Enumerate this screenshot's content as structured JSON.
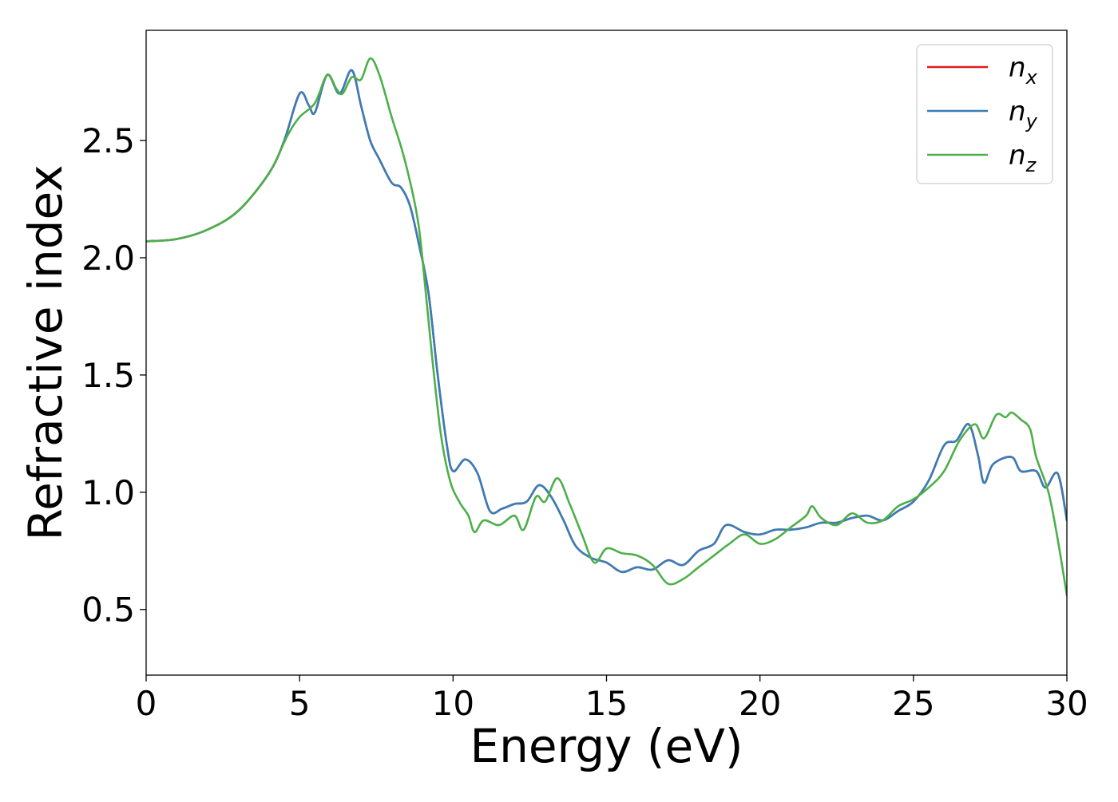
{
  "chart_data": {
    "type": "line",
    "xlabel": "Energy (eV)",
    "ylabel": "Refractive index",
    "xlim": [
      0,
      30
    ],
    "ylim": [
      0.22,
      2.97
    ],
    "xticks": [
      0,
      5,
      10,
      15,
      20,
      25,
      30
    ],
    "xtick_labels": [
      "0",
      "5",
      "10",
      "15",
      "20",
      "25",
      "30"
    ],
    "yticks": [
      0.5,
      1.0,
      1.5,
      2.0,
      2.5
    ],
    "ytick_labels": [
      "0.5",
      "1.0",
      "1.5",
      "2.0",
      "2.5"
    ],
    "grid": false,
    "legend_position": "top-right",
    "series": [
      {
        "name": "n_x",
        "legend_base": "n",
        "legend_sub": "x",
        "color": "#e41a1c",
        "points": [
          [
            0,
            2.07
          ],
          [
            1,
            2.08
          ],
          [
            2,
            2.12
          ],
          [
            3,
            2.2
          ],
          [
            4,
            2.36
          ],
          [
            4.5,
            2.5
          ],
          [
            5,
            2.7
          ],
          [
            5.3,
            2.65
          ],
          [
            5.5,
            2.62
          ],
          [
            5.9,
            2.78
          ],
          [
            6.3,
            2.7
          ],
          [
            6.7,
            2.8
          ],
          [
            7,
            2.65
          ],
          [
            7.3,
            2.5
          ],
          [
            7.6,
            2.42
          ],
          [
            8,
            2.32
          ],
          [
            8.3,
            2.3
          ],
          [
            8.6,
            2.22
          ],
          [
            8.9,
            2.05
          ],
          [
            9.2,
            1.85
          ],
          [
            9.5,
            1.5
          ],
          [
            9.8,
            1.2
          ],
          [
            10,
            1.09
          ],
          [
            10.4,
            1.14
          ],
          [
            10.8,
            1.08
          ],
          [
            11.2,
            0.92
          ],
          [
            11.6,
            0.93
          ],
          [
            12,
            0.95
          ],
          [
            12.4,
            0.96
          ],
          [
            12.8,
            1.03
          ],
          [
            13.2,
            0.98
          ],
          [
            13.6,
            0.88
          ],
          [
            14,
            0.77
          ],
          [
            14.5,
            0.72
          ],
          [
            15,
            0.7
          ],
          [
            15.5,
            0.66
          ],
          [
            16,
            0.68
          ],
          [
            16.5,
            0.67
          ],
          [
            17,
            0.71
          ],
          [
            17.5,
            0.69
          ],
          [
            18,
            0.75
          ],
          [
            18.5,
            0.78
          ],
          [
            18.9,
            0.86
          ],
          [
            19.5,
            0.83
          ],
          [
            20,
            0.82
          ],
          [
            20.5,
            0.84
          ],
          [
            21,
            0.84
          ],
          [
            21.5,
            0.85
          ],
          [
            22,
            0.87
          ],
          [
            22.5,
            0.87
          ],
          [
            23,
            0.89
          ],
          [
            23.5,
            0.9
          ],
          [
            24,
            0.88
          ],
          [
            24.5,
            0.92
          ],
          [
            25,
            0.96
          ],
          [
            25.5,
            1.05
          ],
          [
            26,
            1.2
          ],
          [
            26.4,
            1.22
          ],
          [
            26.8,
            1.29
          ],
          [
            27.1,
            1.16
          ],
          [
            27.3,
            1.04
          ],
          [
            27.6,
            1.12
          ],
          [
            28.2,
            1.15
          ],
          [
            28.5,
            1.09
          ],
          [
            29,
            1.09
          ],
          [
            29.3,
            1.02
          ],
          [
            29.7,
            1.08
          ],
          [
            30,
            0.88
          ]
        ]
      },
      {
        "name": "n_y",
        "legend_base": "n",
        "legend_sub": "y",
        "color": "#377eb8",
        "points": [
          [
            0,
            2.07
          ],
          [
            1,
            2.08
          ],
          [
            2,
            2.12
          ],
          [
            3,
            2.2
          ],
          [
            4,
            2.36
          ],
          [
            4.5,
            2.5
          ],
          [
            5,
            2.7
          ],
          [
            5.3,
            2.65
          ],
          [
            5.5,
            2.62
          ],
          [
            5.9,
            2.78
          ],
          [
            6.3,
            2.7
          ],
          [
            6.7,
            2.8
          ],
          [
            7,
            2.65
          ],
          [
            7.3,
            2.5
          ],
          [
            7.6,
            2.42
          ],
          [
            8,
            2.32
          ],
          [
            8.3,
            2.3
          ],
          [
            8.6,
            2.22
          ],
          [
            8.9,
            2.05
          ],
          [
            9.2,
            1.85
          ],
          [
            9.5,
            1.5
          ],
          [
            9.8,
            1.2
          ],
          [
            10,
            1.09
          ],
          [
            10.4,
            1.14
          ],
          [
            10.8,
            1.08
          ],
          [
            11.2,
            0.92
          ],
          [
            11.6,
            0.93
          ],
          [
            12,
            0.95
          ],
          [
            12.4,
            0.96
          ],
          [
            12.8,
            1.03
          ],
          [
            13.2,
            0.98
          ],
          [
            13.6,
            0.88
          ],
          [
            14,
            0.77
          ],
          [
            14.5,
            0.72
          ],
          [
            15,
            0.7
          ],
          [
            15.5,
            0.66
          ],
          [
            16,
            0.68
          ],
          [
            16.5,
            0.67
          ],
          [
            17,
            0.71
          ],
          [
            17.5,
            0.69
          ],
          [
            18,
            0.75
          ],
          [
            18.5,
            0.78
          ],
          [
            18.9,
            0.86
          ],
          [
            19.5,
            0.83
          ],
          [
            20,
            0.82
          ],
          [
            20.5,
            0.84
          ],
          [
            21,
            0.84
          ],
          [
            21.5,
            0.85
          ],
          [
            22,
            0.87
          ],
          [
            22.5,
            0.87
          ],
          [
            23,
            0.89
          ],
          [
            23.5,
            0.9
          ],
          [
            24,
            0.88
          ],
          [
            24.5,
            0.92
          ],
          [
            25,
            0.96
          ],
          [
            25.5,
            1.05
          ],
          [
            26,
            1.2
          ],
          [
            26.4,
            1.22
          ],
          [
            26.8,
            1.29
          ],
          [
            27.1,
            1.16
          ],
          [
            27.3,
            1.04
          ],
          [
            27.6,
            1.12
          ],
          [
            28.2,
            1.15
          ],
          [
            28.5,
            1.09
          ],
          [
            29,
            1.09
          ],
          [
            29.3,
            1.02
          ],
          [
            29.7,
            1.08
          ],
          [
            30,
            0.88
          ]
        ]
      },
      {
        "name": "n_z",
        "legend_base": "n",
        "legend_sub": "z",
        "color": "#4daf4a",
        "points": [
          [
            0,
            2.07
          ],
          [
            1,
            2.08
          ],
          [
            2,
            2.12
          ],
          [
            3,
            2.2
          ],
          [
            4,
            2.36
          ],
          [
            4.6,
            2.52
          ],
          [
            5,
            2.6
          ],
          [
            5.5,
            2.66
          ],
          [
            5.9,
            2.78
          ],
          [
            6.2,
            2.72
          ],
          [
            6.4,
            2.7
          ],
          [
            6.7,
            2.77
          ],
          [
            7,
            2.76
          ],
          [
            7.3,
            2.85
          ],
          [
            7.6,
            2.78
          ],
          [
            8,
            2.6
          ],
          [
            8.4,
            2.43
          ],
          [
            8.8,
            2.2
          ],
          [
            9,
            2.0
          ],
          [
            9.3,
            1.6
          ],
          [
            9.6,
            1.25
          ],
          [
            9.9,
            1.05
          ],
          [
            10.2,
            0.96
          ],
          [
            10.5,
            0.9
          ],
          [
            10.7,
            0.83
          ],
          [
            11,
            0.88
          ],
          [
            11.5,
            0.86
          ],
          [
            12,
            0.9
          ],
          [
            12.3,
            0.84
          ],
          [
            12.7,
            0.98
          ],
          [
            13,
            0.96
          ],
          [
            13.4,
            1.06
          ],
          [
            13.8,
            0.95
          ],
          [
            14.2,
            0.82
          ],
          [
            14.6,
            0.7
          ],
          [
            15,
            0.76
          ],
          [
            15.5,
            0.74
          ],
          [
            16,
            0.73
          ],
          [
            16.5,
            0.69
          ],
          [
            17,
            0.61
          ],
          [
            17.5,
            0.63
          ],
          [
            18,
            0.68
          ],
          [
            18.5,
            0.73
          ],
          [
            19,
            0.78
          ],
          [
            19.5,
            0.82
          ],
          [
            20,
            0.78
          ],
          [
            20.5,
            0.8
          ],
          [
            21,
            0.85
          ],
          [
            21.5,
            0.9
          ],
          [
            21.7,
            0.94
          ],
          [
            22,
            0.89
          ],
          [
            22.5,
            0.86
          ],
          [
            23,
            0.91
          ],
          [
            23.5,
            0.87
          ],
          [
            24,
            0.88
          ],
          [
            24.5,
            0.94
          ],
          [
            25,
            0.97
          ],
          [
            25.5,
            1.02
          ],
          [
            26,
            1.09
          ],
          [
            26.5,
            1.22
          ],
          [
            27,
            1.29
          ],
          [
            27.3,
            1.23
          ],
          [
            27.7,
            1.33
          ],
          [
            28,
            1.32
          ],
          [
            28.2,
            1.34
          ],
          [
            28.5,
            1.31
          ],
          [
            28.8,
            1.27
          ],
          [
            29,
            1.15
          ],
          [
            29.4,
            1.0
          ],
          [
            29.7,
            0.8
          ],
          [
            30,
            0.56
          ]
        ]
      }
    ]
  }
}
